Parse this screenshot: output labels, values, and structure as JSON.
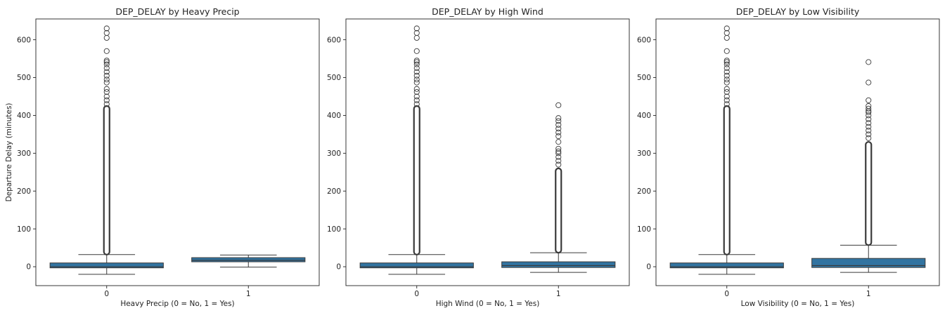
{
  "chart_data": [
    {
      "type": "box",
      "title": "DEP_DELAY by Heavy Precip",
      "xlabel": "Heavy Precip (0 = No, 1 = Yes)",
      "ylabel": "Departure Delay (minutes)",
      "categories": [
        "0",
        "1"
      ],
      "ylim": [
        -50,
        655
      ],
      "yticks": [
        0,
        100,
        200,
        300,
        400,
        500,
        600
      ],
      "grid": false,
      "boxes": [
        {
          "category": "0",
          "whisker_low": -20,
          "q1": -3,
          "median": 0,
          "q3": 10,
          "whisker_high": 32,
          "dense_outliers": [
            32,
            425
          ],
          "outliers": [
            430,
            440,
            450,
            462,
            470,
            487,
            495,
            505,
            515,
            525,
            535,
            541,
            545,
            570,
            605,
            618,
            630
          ]
        },
        {
          "category": "1",
          "whisker_low": -1,
          "q1": 13,
          "median": 17,
          "q3": 24,
          "whisker_high": 31,
          "dense_outliers": null,
          "outliers": []
        }
      ]
    },
    {
      "type": "box",
      "title": "DEP_DELAY by High Wind",
      "xlabel": "High Wind (0 = No, 1 = Yes)",
      "ylabel": "",
      "categories": [
        "0",
        "1"
      ],
      "ylim": [
        -50,
        655
      ],
      "yticks": [
        0,
        100,
        200,
        300,
        400,
        500,
        600
      ],
      "grid": false,
      "boxes": [
        {
          "category": "0",
          "whisker_low": -20,
          "q1": -3,
          "median": 0,
          "q3": 10,
          "whisker_high": 32,
          "dense_outliers": [
            32,
            425
          ],
          "outliers": [
            430,
            440,
            450,
            462,
            470,
            487,
            495,
            505,
            515,
            525,
            535,
            541,
            545,
            570,
            605,
            618,
            630
          ]
        },
        {
          "category": "1",
          "whisker_low": -15,
          "q1": -2,
          "median": 3,
          "q3": 13,
          "whisker_high": 37,
          "dense_outliers": [
            37,
            260
          ],
          "outliers": [
            270,
            280,
            290,
            300,
            305,
            312,
            330,
            345,
            355,
            365,
            375,
            385,
            393,
            427
          ]
        }
      ]
    },
    {
      "type": "box",
      "title": "DEP_DELAY by Low Visibility",
      "xlabel": "Low Visibility (0 = No, 1 = Yes)",
      "ylabel": "",
      "categories": [
        "0",
        "1"
      ],
      "ylim": [
        -50,
        655
      ],
      "yticks": [
        0,
        100,
        200,
        300,
        400,
        500,
        600
      ],
      "grid": false,
      "boxes": [
        {
          "category": "0",
          "whisker_low": -20,
          "q1": -3,
          "median": 0,
          "q3": 10,
          "whisker_high": 32,
          "dense_outliers": [
            32,
            425
          ],
          "outliers": [
            430,
            440,
            450,
            462,
            470,
            487,
            495,
            505,
            515,
            525,
            535,
            541,
            545,
            570,
            605,
            618,
            630
          ]
        },
        {
          "category": "1",
          "whisker_low": -15,
          "q1": -2,
          "median": 3,
          "q3": 22,
          "whisker_high": 57,
          "dense_outliers": [
            57,
            330
          ],
          "outliers": [
            340,
            350,
            360,
            370,
            380,
            390,
            400,
            408,
            412,
            418,
            425,
            440,
            487,
            541
          ]
        }
      ]
    }
  ],
  "colors": {
    "box_fill": "#3274a1",
    "line": "#3a3a3a",
    "axes": "#222222",
    "outlier_edge": "#3a3a3a"
  }
}
